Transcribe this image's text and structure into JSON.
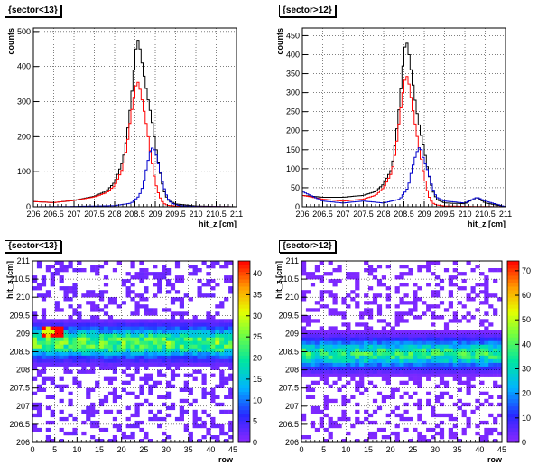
{
  "chart_data": [
    {
      "type": "line",
      "title": "{sector<13}",
      "xlabel": "hit_z [cm]",
      "ylabel": "counts",
      "xlim": [
        206,
        211
      ],
      "ylim": [
        0,
        510
      ],
      "xticks": [
        "206",
        "206.5",
        "207",
        "207.5",
        "208",
        "208.5",
        "209",
        "209.5",
        "210",
        "210.5",
        "211"
      ],
      "yticks": [
        "0",
        "100",
        "200",
        "300",
        "400",
        "500"
      ],
      "yticks_values": [
        0,
        100,
        200,
        300,
        400,
        500
      ],
      "grid": true,
      "series": [
        {
          "color": "#000000",
          "x": [
            206.0,
            206.5,
            207.0,
            207.5,
            207.8,
            208.0,
            208.2,
            208.3,
            208.4,
            208.5,
            208.55,
            208.6,
            208.7,
            208.8,
            208.9,
            209.0,
            209.1,
            209.2,
            209.3,
            209.5,
            210.0,
            211.0
          ],
          "values": [
            15,
            12,
            18,
            30,
            45,
            70,
            130,
            200,
            300,
            420,
            480,
            470,
            390,
            320,
            260,
            180,
            110,
            50,
            20,
            8,
            2,
            0
          ]
        },
        {
          "color": "#ff0000",
          "x": [
            206.0,
            206.5,
            207.0,
            207.5,
            207.8,
            208.0,
            208.2,
            208.3,
            208.4,
            208.5,
            208.55,
            208.6,
            208.7,
            208.8,
            208.9,
            209.0,
            209.1,
            209.2,
            209.3,
            209.5,
            210.0,
            211.0
          ],
          "values": [
            15,
            12,
            18,
            28,
            40,
            60,
            110,
            170,
            260,
            330,
            360,
            350,
            290,
            220,
            140,
            70,
            30,
            10,
            4,
            2,
            1,
            0
          ]
        },
        {
          "color": "#0000cc",
          "x": [
            206.0,
            207.0,
            208.0,
            208.4,
            208.6,
            208.7,
            208.8,
            208.9,
            209.0,
            209.1,
            209.2,
            209.3,
            209.4,
            209.6,
            210.0,
            211.0
          ],
          "values": [
            0,
            1,
            3,
            10,
            30,
            60,
            120,
            170,
            160,
            110,
            60,
            25,
            10,
            3,
            1,
            0
          ]
        }
      ]
    },
    {
      "type": "line",
      "title": "{sector>12}",
      "xlabel": "hit_z [cm]",
      "ylabel": "counts",
      "xlim": [
        206,
        211
      ],
      "ylim": [
        0,
        470
      ],
      "xticks": [
        "206",
        "206.5",
        "207",
        "207.5",
        "208",
        "208.5",
        "209",
        "209.5",
        "210",
        "210.5",
        "211"
      ],
      "yticks": [
        "0",
        "50",
        "100",
        "150",
        "200",
        "250",
        "300",
        "350",
        "400",
        "450"
      ],
      "yticks_values": [
        0,
        50,
        100,
        150,
        200,
        250,
        300,
        350,
        400,
        450
      ],
      "grid": true,
      "series": [
        {
          "color": "#000000",
          "x": [
            206.0,
            206.5,
            207.0,
            207.5,
            207.8,
            208.0,
            208.2,
            208.3,
            208.4,
            208.5,
            208.55,
            208.6,
            208.7,
            208.8,
            208.9,
            209.0,
            209.1,
            209.2,
            209.3,
            209.5,
            210.0,
            210.3,
            210.5,
            211.0
          ],
          "values": [
            30,
            25,
            25,
            30,
            40,
            60,
            100,
            180,
            280,
            400,
            440,
            420,
            340,
            260,
            200,
            150,
            90,
            45,
            20,
            10,
            8,
            25,
            10,
            0
          ]
        },
        {
          "color": "#ff0000",
          "x": [
            206.0,
            206.5,
            207.0,
            207.5,
            207.8,
            208.0,
            208.2,
            208.3,
            208.4,
            208.5,
            208.55,
            208.6,
            208.7,
            208.8,
            208.9,
            209.0,
            209.1,
            209.2,
            209.3,
            209.5,
            210.0,
            211.0
          ],
          "values": [
            30,
            20,
            15,
            20,
            30,
            50,
            90,
            150,
            240,
            320,
            345,
            340,
            270,
            200,
            140,
            80,
            30,
            10,
            5,
            2,
            1,
            0
          ]
        },
        {
          "color": "#0000cc",
          "x": [
            206.0,
            206.5,
            207.0,
            207.5,
            208.0,
            208.4,
            208.6,
            208.7,
            208.8,
            208.9,
            209.0,
            209.1,
            209.2,
            209.3,
            209.5,
            210.0,
            210.3,
            210.5,
            211.0
          ],
          "values": [
            40,
            15,
            10,
            15,
            10,
            20,
            50,
            100,
            140,
            160,
            120,
            90,
            50,
            25,
            15,
            10,
            25,
            15,
            0
          ]
        }
      ]
    },
    {
      "type": "heatmap",
      "title": "{sector<13}",
      "xlabel": "row",
      "ylabel": "hit_z [cm]",
      "xlim": [
        0,
        45
      ],
      "ylim": [
        206,
        211
      ],
      "xticks": [
        "0",
        "5",
        "10",
        "15",
        "20",
        "25",
        "30",
        "35",
        "40",
        "45"
      ],
      "yticks": [
        "206",
        "206.5",
        "207",
        "207.5",
        "208",
        "208.5",
        "209",
        "209.5",
        "210",
        "210.5",
        "211"
      ],
      "zlim": [
        0,
        43
      ],
      "zticks": [
        "0",
        "5",
        "10",
        "15",
        "20",
        "25",
        "30",
        "35",
        "40"
      ],
      "zticks_values": [
        0,
        5,
        10,
        15,
        20,
        25,
        30,
        35,
        40
      ],
      "band": {
        "rows": [
          0,
          45
        ],
        "peak_z": 208.75,
        "width_z": 0.55,
        "peak_value": 24,
        "hot_rows": [
          2,
          6
        ],
        "hot_value": 40
      }
    },
    {
      "type": "heatmap",
      "title": "{sector>12}",
      "xlabel": "row",
      "ylabel": "hit_z [cm]",
      "xlim": [
        0,
        45
      ],
      "ylim": [
        206,
        211
      ],
      "xticks": [
        "0",
        "5",
        "10",
        "15",
        "20",
        "25",
        "30",
        "35",
        "40",
        "45"
      ],
      "yticks": [
        "206",
        "206.5",
        "207",
        "207.5",
        "208",
        "208.5",
        "209",
        "209.5",
        "210",
        "210.5",
        "211"
      ],
      "zlim": [
        0,
        74
      ],
      "zticks": [
        "0",
        "10",
        "20",
        "30",
        "40",
        "50",
        "60",
        "70"
      ],
      "zticks_values": [
        0,
        10,
        20,
        30,
        40,
        50,
        60,
        70
      ],
      "band": {
        "rows": [
          0,
          45
        ],
        "peak_z": 208.45,
        "width_z": 0.5,
        "peak_value": 36,
        "hot_rows": [],
        "hot_value": 36
      }
    }
  ]
}
